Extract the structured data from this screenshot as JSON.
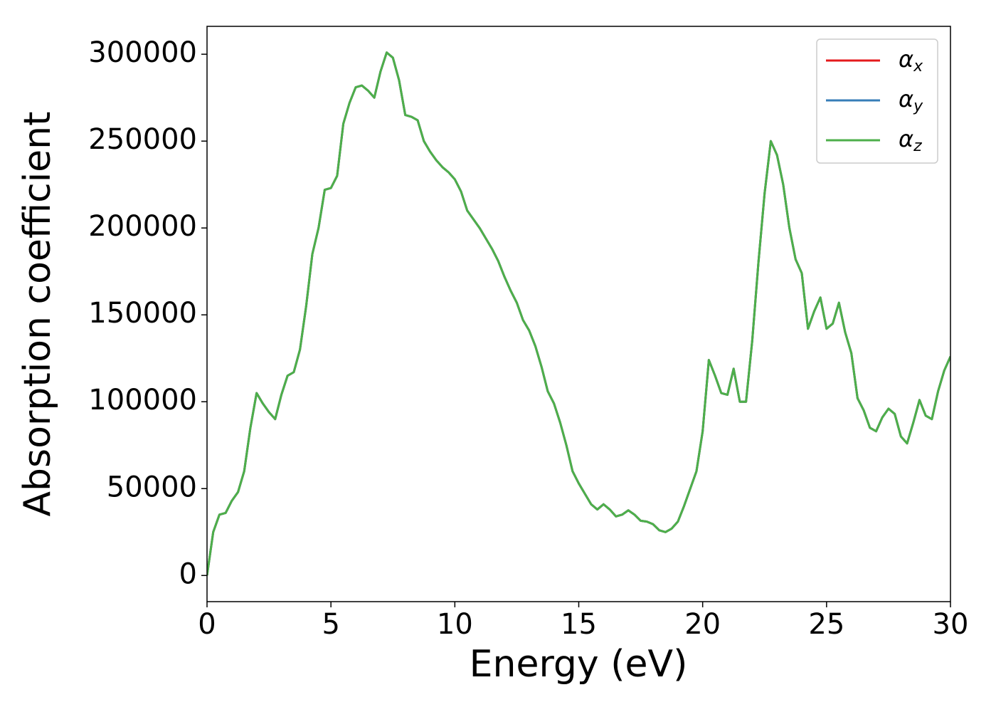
{
  "chart_data": {
    "type": "line",
    "xlabel": "Energy (eV)",
    "ylabel": "Absorption coefficient",
    "x": [
      0,
      0.25,
      0.5,
      0.75,
      1,
      1.25,
      1.5,
      1.75,
      2,
      2.25,
      2.5,
      2.75,
      3,
      3.25,
      3.5,
      3.75,
      4,
      4.25,
      4.5,
      4.75,
      5,
      5.25,
      5.5,
      5.75,
      6,
      6.25,
      6.5,
      6.75,
      7,
      7.25,
      7.5,
      7.75,
      8,
      8.25,
      8.5,
      8.75,
      9,
      9.25,
      9.5,
      9.75,
      10,
      10.25,
      10.5,
      10.75,
      11,
      11.25,
      11.5,
      11.75,
      12,
      12.25,
      12.5,
      12.75,
      13,
      13.25,
      13.5,
      13.75,
      14,
      14.25,
      14.5,
      14.75,
      15,
      15.25,
      15.5,
      15.75,
      16,
      16.25,
      16.5,
      16.75,
      17,
      17.25,
      17.5,
      17.75,
      18,
      18.25,
      18.5,
      18.75,
      19,
      19.25,
      19.5,
      19.75,
      20,
      20.25,
      20.5,
      20.75,
      21,
      21.25,
      21.5,
      21.75,
      22,
      22.25,
      22.5,
      22.75,
      23,
      23.25,
      23.5,
      23.75,
      24,
      24.25,
      24.5,
      24.75,
      25,
      25.25,
      25.5,
      25.75,
      26,
      26.25,
      26.5,
      26.75,
      27,
      27.25,
      27.5,
      27.75,
      28,
      28.25,
      28.5,
      28.75,
      29,
      29.25,
      29.5,
      29.75,
      30
    ],
    "series": [
      {
        "name": "αx",
        "color": "#e41a1c",
        "values": [
          0,
          25000,
          35000,
          36000,
          43000,
          48000,
          60000,
          85000,
          105000,
          99000,
          94000,
          90000,
          104000,
          115000,
          117000,
          130000,
          155000,
          185000,
          200000,
          222000,
          223000,
          230000,
          260000,
          272000,
          281000,
          282000,
          279000,
          275000,
          290000,
          301000,
          298000,
          285000,
          265000,
          264000,
          262000,
          250000,
          244000,
          239000,
          235000,
          232000,
          228000,
          221000,
          210000,
          205000,
          200000,
          194000,
          188000,
          181000,
          172000,
          164000,
          157000,
          147000,
          141000,
          132000,
          120000,
          106000,
          99000,
          88000,
          75000,
          60000,
          53000,
          47000,
          41000,
          38000,
          41000,
          38000,
          34000,
          35000,
          37500,
          35000,
          31500,
          31000,
          29500,
          26000,
          25000,
          27000,
          31000,
          40000,
          50000,
          60000,
          83000,
          124000,
          115000,
          105000,
          104000,
          119000,
          100000,
          100000,
          135000,
          180000,
          220000,
          250000,
          242000,
          225000,
          200000,
          182000,
          174000,
          142000,
          152000,
          160000,
          142000,
          145000,
          157000,
          140000,
          128000,
          102000,
          95000,
          85000,
          83000,
          91000,
          96000,
          93000,
          80000,
          76000,
          88000,
          101000,
          92000,
          90000,
          106000,
          118000,
          126000
        ]
      },
      {
        "name": "αy",
        "color": "#377eb8",
        "values": [
          0,
          25000,
          35000,
          36000,
          43000,
          48000,
          60000,
          85000,
          105000,
          99000,
          94000,
          90000,
          104000,
          115000,
          117000,
          130000,
          155000,
          185000,
          200000,
          222000,
          223000,
          230000,
          260000,
          272000,
          281000,
          282000,
          279000,
          275000,
          290000,
          301000,
          298000,
          285000,
          265000,
          264000,
          262000,
          250000,
          244000,
          239000,
          235000,
          232000,
          228000,
          221000,
          210000,
          205000,
          200000,
          194000,
          188000,
          181000,
          172000,
          164000,
          157000,
          147000,
          141000,
          132000,
          120000,
          106000,
          99000,
          88000,
          75000,
          60000,
          53000,
          47000,
          41000,
          38000,
          41000,
          38000,
          34000,
          35000,
          37500,
          35000,
          31500,
          31000,
          29500,
          26000,
          25000,
          27000,
          31000,
          40000,
          50000,
          60000,
          83000,
          124000,
          115000,
          105000,
          104000,
          119000,
          100000,
          100000,
          135000,
          180000,
          220000,
          250000,
          242000,
          225000,
          200000,
          182000,
          174000,
          142000,
          152000,
          160000,
          142000,
          145000,
          157000,
          140000,
          128000,
          102000,
          95000,
          85000,
          83000,
          91000,
          96000,
          93000,
          80000,
          76000,
          88000,
          101000,
          92000,
          90000,
          106000,
          118000,
          126000
        ]
      },
      {
        "name": "αz",
        "color": "#4daf4a",
        "values": [
          0,
          25000,
          35000,
          36000,
          43000,
          48000,
          60000,
          85000,
          105000,
          99000,
          94000,
          90000,
          104000,
          115000,
          117000,
          130000,
          155000,
          185000,
          200000,
          222000,
          223000,
          230000,
          260000,
          272000,
          281000,
          282000,
          279000,
          275000,
          290000,
          301000,
          298000,
          285000,
          265000,
          264000,
          262000,
          250000,
          244000,
          239000,
          235000,
          232000,
          228000,
          221000,
          210000,
          205000,
          200000,
          194000,
          188000,
          181000,
          172000,
          164000,
          157000,
          147000,
          141000,
          132000,
          120000,
          106000,
          99000,
          88000,
          75000,
          60000,
          53000,
          47000,
          41000,
          38000,
          41000,
          38000,
          34000,
          35000,
          37500,
          35000,
          31500,
          31000,
          29500,
          26000,
          25000,
          27000,
          31000,
          40000,
          50000,
          60000,
          83000,
          124000,
          115000,
          105000,
          104000,
          119000,
          100000,
          100000,
          135000,
          180000,
          220000,
          250000,
          242000,
          225000,
          200000,
          182000,
          174000,
          142000,
          152000,
          160000,
          142000,
          145000,
          157000,
          140000,
          128000,
          102000,
          95000,
          85000,
          83000,
          91000,
          96000,
          93000,
          80000,
          76000,
          88000,
          101000,
          92000,
          90000,
          106000,
          118000,
          126000
        ]
      }
    ],
    "xlim": [
      0,
      30
    ],
    "xticks": [
      0,
      5,
      10,
      15,
      20,
      25,
      30
    ],
    "ylim": [
      -15050,
      316050
    ],
    "yticks": [
      0,
      50000,
      100000,
      150000,
      200000,
      250000,
      300000
    ],
    "grid": false,
    "legend": "upper right"
  }
}
